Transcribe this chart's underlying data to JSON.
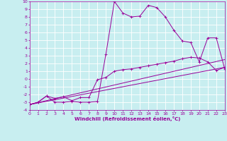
{
  "xlabel": "Windchill (Refroidissement éolien,°C)",
  "xlim": [
    0,
    23
  ],
  "ylim": [
    -4,
    10
  ],
  "xticks": [
    0,
    1,
    2,
    3,
    4,
    5,
    6,
    7,
    8,
    9,
    10,
    11,
    12,
    13,
    14,
    15,
    16,
    17,
    18,
    19,
    20,
    21,
    22,
    23
  ],
  "yticks": [
    -4,
    -3,
    -2,
    -1,
    0,
    1,
    2,
    3,
    4,
    5,
    6,
    7,
    8,
    9,
    10
  ],
  "bg_color": "#c8eef0",
  "line_color": "#990099",
  "grid_color": "#ffffff",
  "font_color": "#990099",
  "line1_x": [
    0,
    1,
    2,
    3,
    4,
    5,
    6,
    7,
    8,
    9,
    10,
    11,
    12,
    13,
    14,
    15,
    16,
    17,
    18,
    19,
    20,
    21,
    22,
    23
  ],
  "line1_y": [
    -3.3,
    -3.0,
    -2.2,
    -3.0,
    -3.0,
    -2.9,
    -3.0,
    -3.0,
    -2.9,
    3.2,
    10.0,
    8.5,
    8.0,
    8.1,
    9.5,
    9.2,
    8.0,
    6.3,
    4.9,
    4.7,
    2.2,
    5.3,
    5.3,
    1.3
  ],
  "line2_x": [
    0,
    1,
    2,
    3,
    4,
    5,
    6,
    7,
    8,
    9,
    10,
    11,
    12,
    13,
    14,
    15,
    16,
    17,
    18,
    19,
    20,
    21,
    22,
    23
  ],
  "line2_y": [
    -3.3,
    -3.0,
    -2.2,
    -2.5,
    -2.3,
    -2.8,
    -2.4,
    -2.4,
    -0.1,
    0.2,
    1.0,
    1.2,
    1.3,
    1.5,
    1.7,
    1.9,
    2.1,
    2.3,
    2.6,
    2.8,
    2.7,
    2.2,
    1.1,
    1.5
  ],
  "line3_x": [
    0,
    23
  ],
  "line3_y": [
    -3.3,
    1.5
  ],
  "line4_x": [
    0,
    23
  ],
  "line4_y": [
    -3.3,
    2.5
  ]
}
